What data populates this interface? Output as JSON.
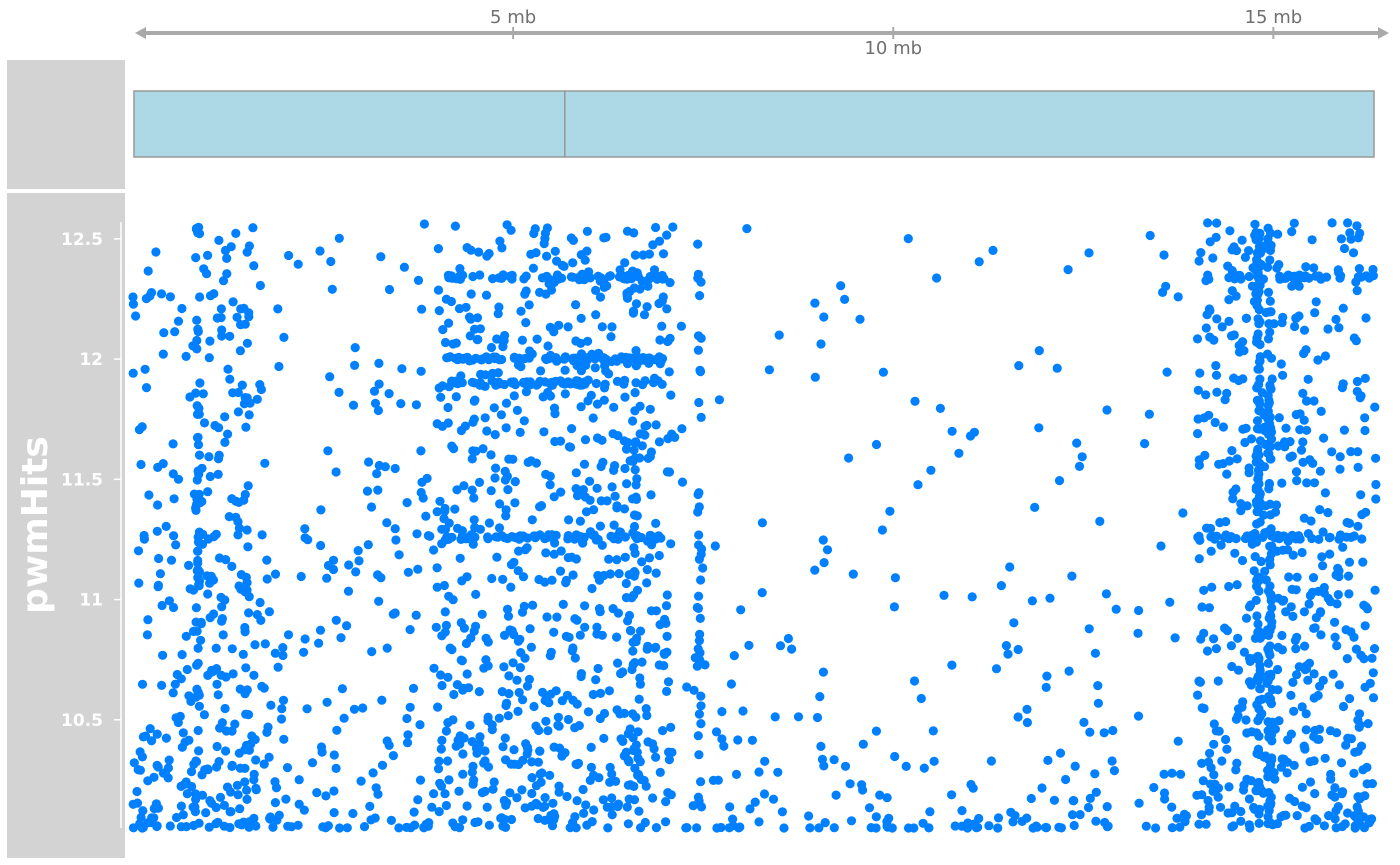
{
  "colors": {
    "panel_background": "#d3d3d3",
    "gene_fill": "#add8e6",
    "gene_stroke": "#999999",
    "axis_line": "#a9a9a9",
    "axis_text": "#707070",
    "points": "#0080ff"
  },
  "genome_axis": {
    "ticks": [
      {
        "label": "5 mb",
        "position_mb": 5.0,
        "side": "top"
      },
      {
        "label": "10 mb",
        "position_mb": 10.0,
        "side": "bottom"
      },
      {
        "label": "15 mb",
        "position_mb": 15.0,
        "side": "top"
      }
    ],
    "range_mb": [
      0.05,
      16.35
    ]
  },
  "gene_track": {
    "segments_mb": [
      [
        0.0,
        5.68
      ],
      [
        5.68,
        16.35
      ]
    ]
  },
  "chart_data": {
    "type": "scatter",
    "title": "",
    "ylabel": "pwmHits",
    "xlabel": "",
    "x_unit": "mb",
    "x_range": [
      0.0,
      16.35
    ],
    "ylim": [
      10.05,
      12.57
    ],
    "yticks": [
      {
        "value": 12.5,
        "label": "12.5"
      },
      {
        "value": 12.0,
        "label": "12"
      },
      {
        "value": 11.5,
        "label": "11.5"
      },
      {
        "value": 11.0,
        "label": "11"
      },
      {
        "value": 10.5,
        "label": "10.5"
      }
    ],
    "grid": false,
    "legend": "none",
    "series": [
      {
        "color": "#0080ff",
        "clusters": [
          {
            "x_from": 0.0,
            "x_to": 1.6,
            "count": 300,
            "density_bias": 1.6
          },
          {
            "x_from": 1.6,
            "x_to": 4.0,
            "count": 200,
            "density_bias": 1.8
          },
          {
            "x_from": 4.0,
            "x_to": 7.1,
            "count": 760,
            "density_bias": 1.3
          },
          {
            "x_from": 7.1,
            "x_to": 14.0,
            "count": 260,
            "density_bias": 2.6
          },
          {
            "x_from": 14.0,
            "x_to": 16.35,
            "count": 560,
            "density_bias": 1.3
          }
        ],
        "stripes": [
          {
            "x_from": 4.1,
            "x_to": 7.0,
            "y": 12.0,
            "count": 70
          },
          {
            "x_from": 4.1,
            "x_to": 7.0,
            "y": 11.9,
            "count": 70
          },
          {
            "x_from": 4.1,
            "x_to": 7.0,
            "y": 12.34,
            "count": 60
          },
          {
            "x_from": 4.1,
            "x_to": 7.0,
            "y": 11.26,
            "count": 60
          },
          {
            "x_from": 14.0,
            "x_to": 16.35,
            "y": 12.34,
            "count": 40
          },
          {
            "x_from": 14.0,
            "x_to": 16.35,
            "y": 11.26,
            "count": 35
          }
        ],
        "columns": [
          {
            "x": 0.85,
            "count": 60
          },
          {
            "x": 1.5,
            "count": 22
          },
          {
            "x": 6.6,
            "count": 35
          },
          {
            "x": 7.45,
            "count": 40
          },
          {
            "x": 14.8,
            "count": 110
          },
          {
            "x": 14.95,
            "count": 100
          }
        ],
        "seed": 7
      }
    ]
  }
}
